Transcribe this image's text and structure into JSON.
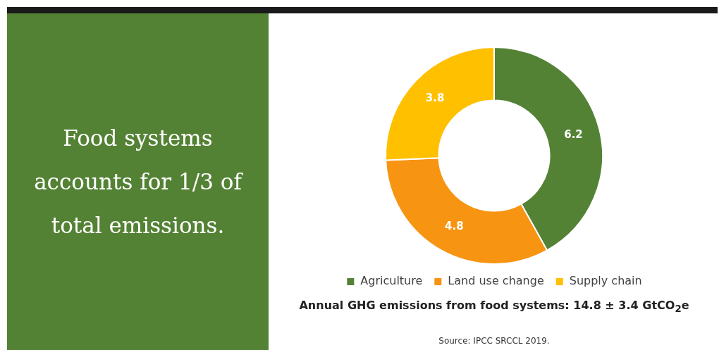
{
  "chart_data": {
    "type": "donut",
    "title": "Food systems accounts for 1/3 of total emissions.",
    "subtitle": "Annual GHG emissions from food systems: 14.8 ± 3.4 GtCO$_{2}$e",
    "annotations": [
      "Source: IPCC SRCCL 2019."
    ],
    "categories": [
      "Agriculture",
      "Land use change",
      "Supply chain"
    ],
    "values": [
      6.2,
      4.8,
      3.8
    ],
    "colors": [
      "#548235",
      "#f79412",
      "#ffc000"
    ],
    "data_labels": true,
    "legend": "bottom"
  }
}
